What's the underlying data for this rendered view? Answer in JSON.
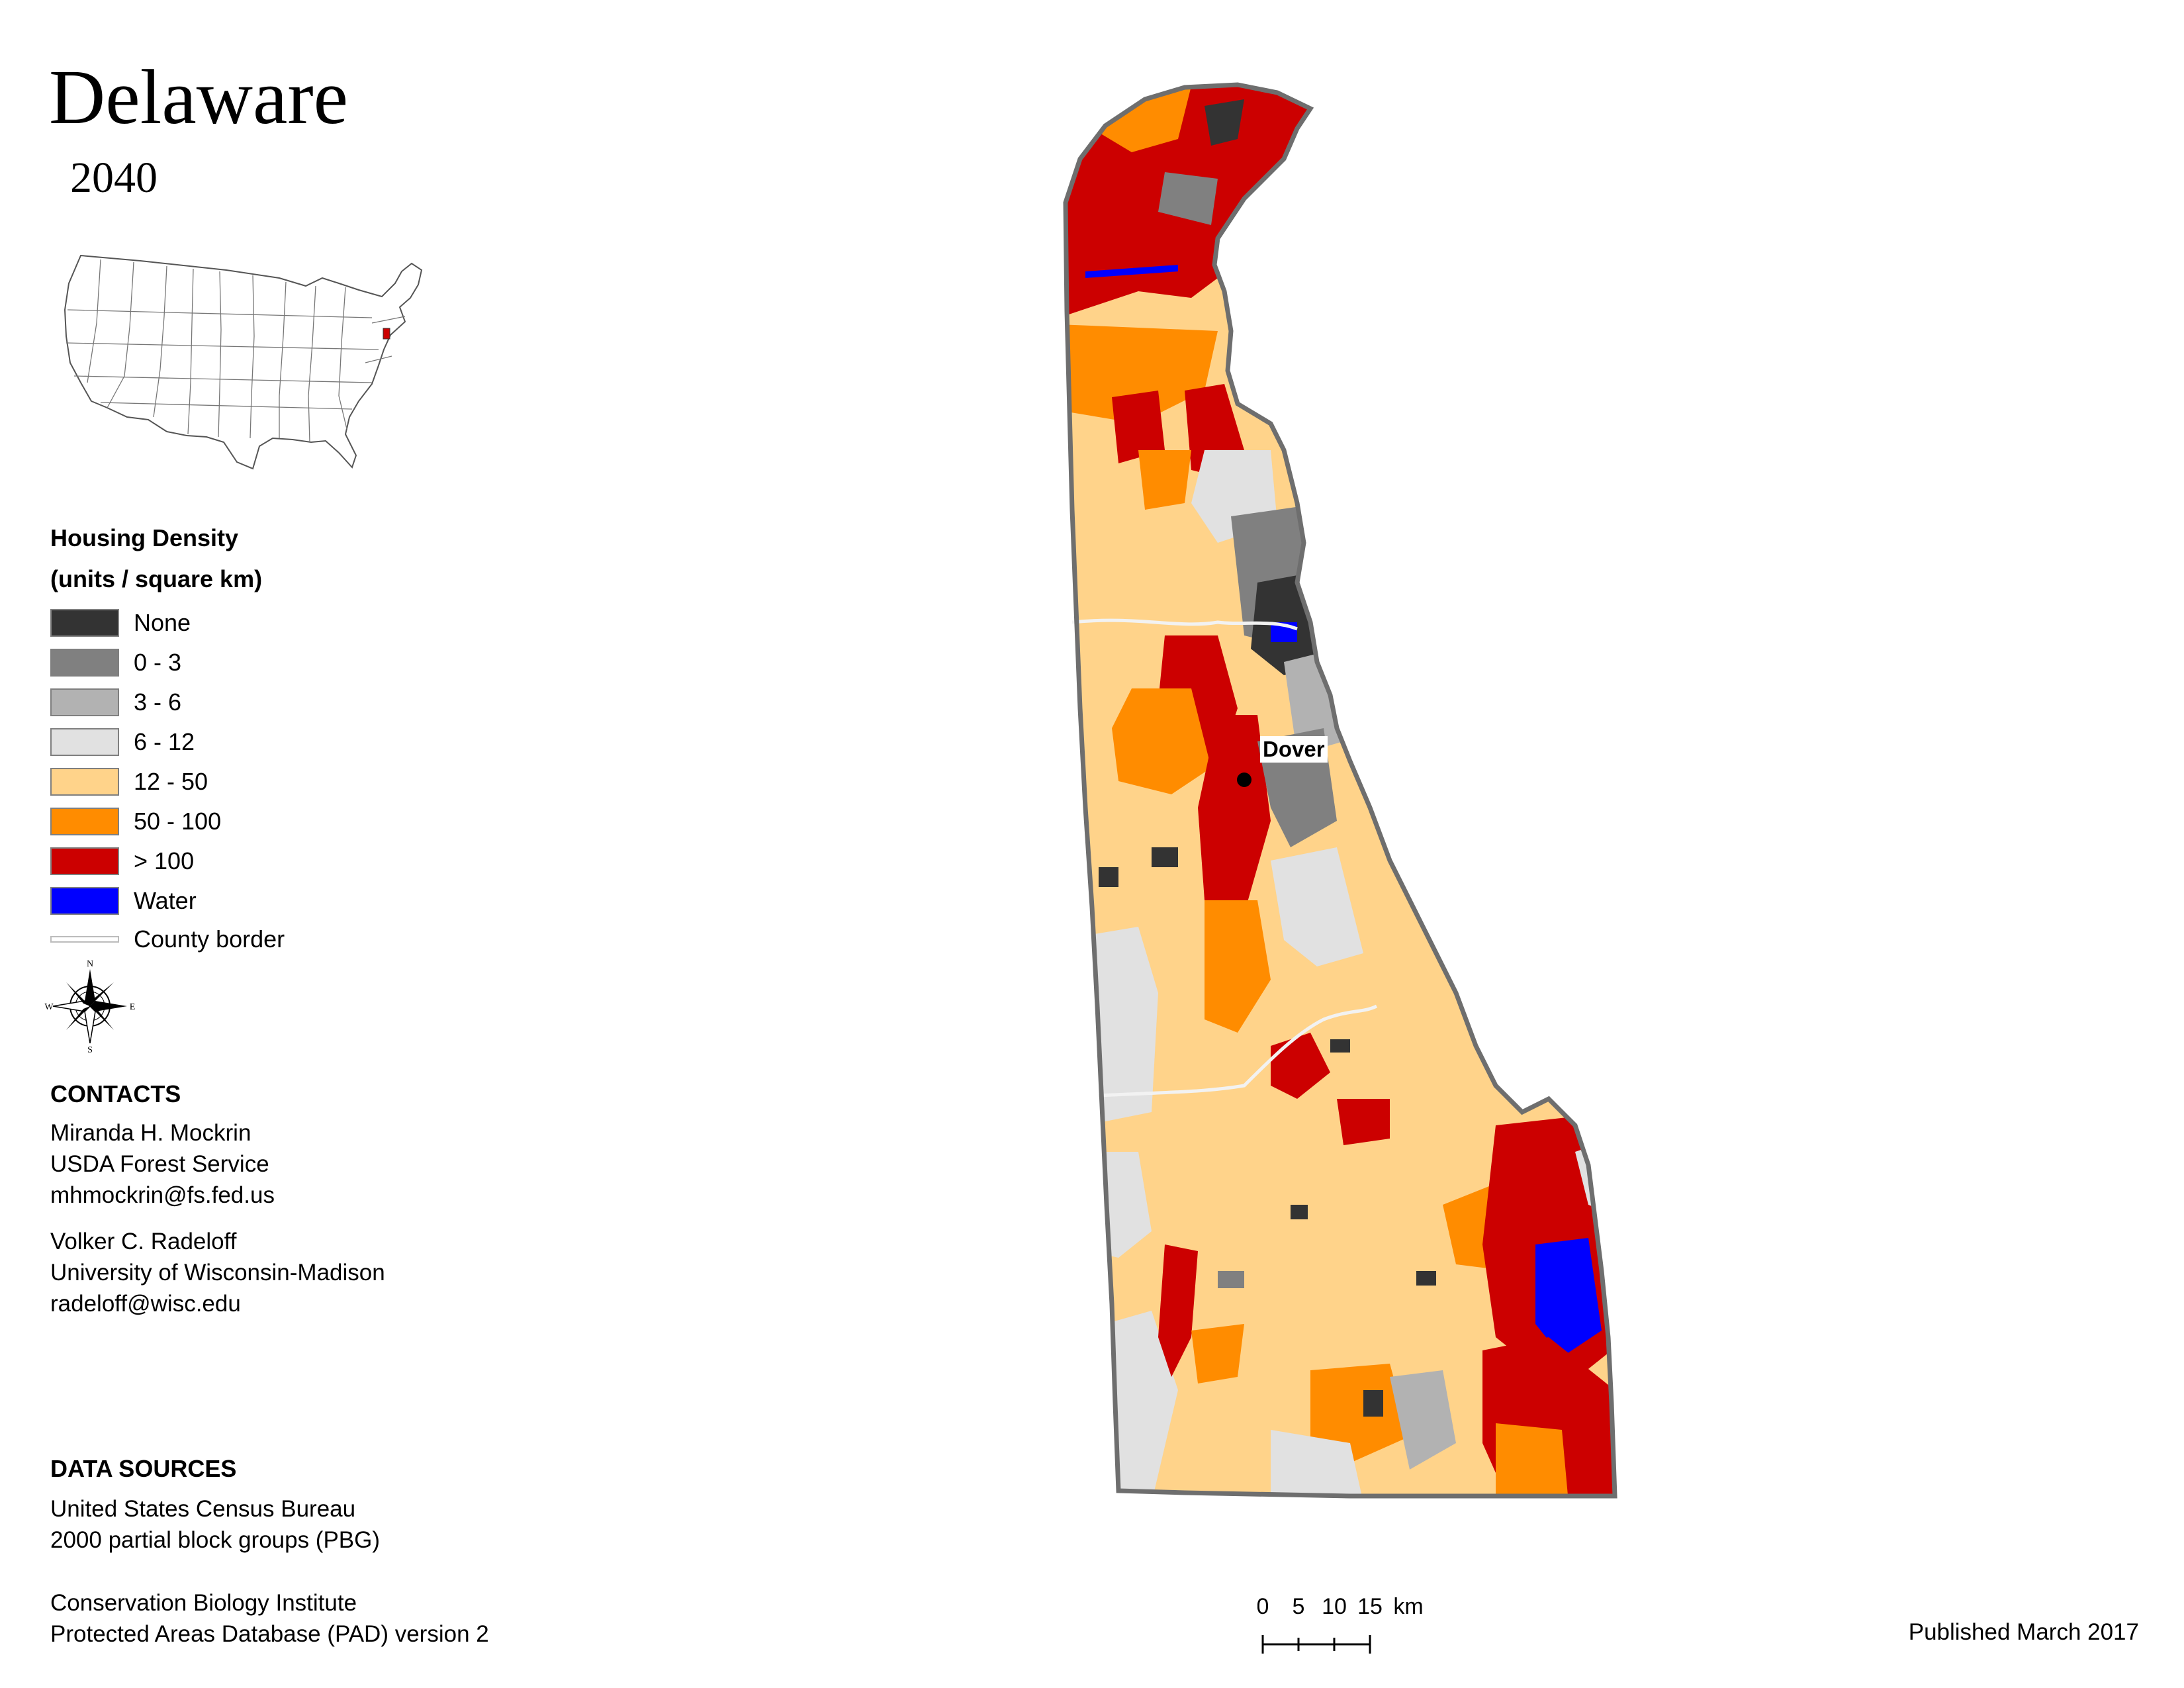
{
  "header": {
    "title": "Delaware",
    "year": "2040"
  },
  "legend": {
    "title_line1": "Housing Density",
    "title_line2": "(units / square km)",
    "items": [
      {
        "label": "None",
        "color": "#333333"
      },
      {
        "label": "0 - 3",
        "color": "#808080"
      },
      {
        "label": "3 - 6",
        "color": "#b2b2b2"
      },
      {
        "label": "6 - 12",
        "color": "#e1e1e1"
      },
      {
        "label": "12 - 50",
        "color": "#ffd38a"
      },
      {
        "label": "50 - 100",
        "color": "#ff8c00"
      },
      {
        "label": "> 100",
        "color": "#cc0000"
      },
      {
        "label": "Water",
        "color": "#0000ff"
      }
    ],
    "county_border_label": "County border"
  },
  "compass": {
    "n": "N",
    "s": "S",
    "e": "E",
    "w": "W"
  },
  "contacts": {
    "title": "CONTACTS",
    "person1": {
      "name": "Miranda H. Mockrin",
      "org": "USDA Forest Service",
      "email": "mhmockrin@fs.fed.us"
    },
    "person2": {
      "name": "Volker C. Radeloff",
      "org": "University of Wisconsin-Madison",
      "email": "radeloff@wisc.edu"
    }
  },
  "data_sources": {
    "title": "DATA SOURCES",
    "source1_line1": "United States Census Bureau",
    "source1_line2": "2000 partial block groups (PBG)",
    "source2_line1": "Conservation Biology Institute",
    "source2_line2": "Protected Areas Database (PAD) version 2"
  },
  "scale": {
    "t0": "0",
    "t1": "5",
    "t2": "10",
    "t3": "15",
    "unit": "km"
  },
  "map": {
    "city_label": "Dover"
  },
  "footer": {
    "published": "Published March 2017"
  }
}
